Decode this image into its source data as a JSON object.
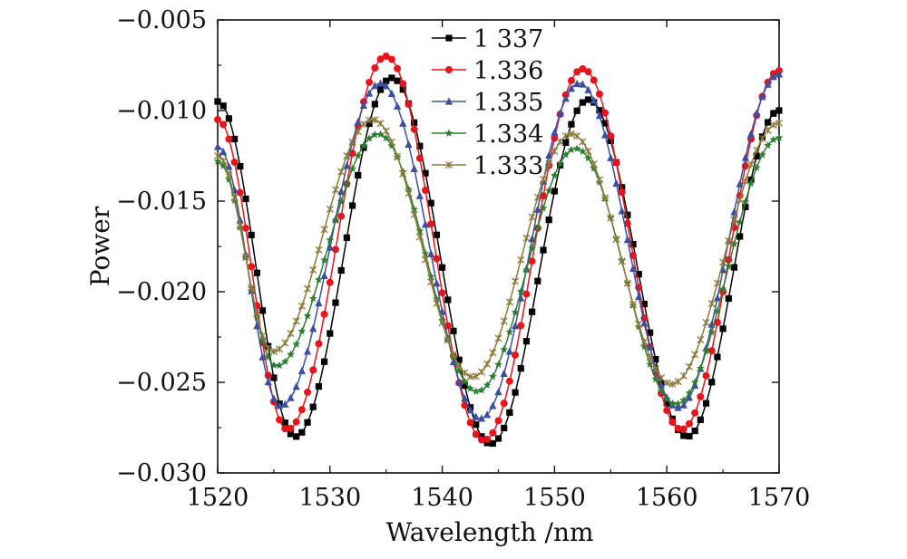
{
  "chart_data": {
    "type": "line",
    "title": "",
    "xlabel": "Wavelength /nm",
    "ylabel": "Power",
    "xlim": [
      1520,
      1570
    ],
    "ylim": [
      -0.03,
      -0.005
    ],
    "xticks": [
      1520,
      1530,
      1540,
      1550,
      1560,
      1570
    ],
    "xtick_labels": [
      "1520",
      "1530",
      "1540",
      "1550",
      "1560",
      "1570"
    ],
    "yticks": [
      -0.03,
      -0.025,
      -0.02,
      -0.015,
      -0.01,
      -0.005
    ],
    "ytick_labels": [
      "−0.030",
      "−0.025",
      "−0.020",
      "−0.015",
      "−0.010",
      "−0.005"
    ],
    "grid": false,
    "legend_position": "top-center",
    "x_step": 0.5,
    "series": [
      {
        "name": "1 337",
        "color": "#000000",
        "marker": "square",
        "points": [
          [
            1520,
            -0.0095
          ],
          [
            1526.9,
            -0.028
          ],
          [
            1535.5,
            -0.0082
          ],
          [
            1544.3,
            -0.0284
          ],
          [
            1553.0,
            -0.0094
          ],
          [
            1561.8,
            -0.028
          ],
          [
            1570,
            -0.01
          ]
        ]
      },
      {
        "name": "1.336",
        "color": "#e8141c",
        "marker": "circle",
        "points": [
          [
            1520,
            -0.0105
          ],
          [
            1526.2,
            -0.0276
          ],
          [
            1535.0,
            -0.007
          ],
          [
            1543.7,
            -0.0282
          ],
          [
            1552.5,
            -0.0077
          ],
          [
            1561.3,
            -0.0276
          ],
          [
            1570,
            -0.0078
          ]
        ]
      },
      {
        "name": "1.335",
        "color": "#3c4ea0",
        "marker": "triangle",
        "points": [
          [
            1520,
            -0.012
          ],
          [
            1525.6,
            -0.0263
          ],
          [
            1534.5,
            -0.0085
          ],
          [
            1543.4,
            -0.027
          ],
          [
            1552.2,
            -0.0085
          ],
          [
            1561.0,
            -0.0264
          ],
          [
            1570,
            -0.008
          ]
        ]
      },
      {
        "name": "1.334",
        "color": "#2e7d32",
        "marker": "star",
        "points": [
          [
            1520,
            -0.0128
          ],
          [
            1525.2,
            -0.0241
          ],
          [
            1534.3,
            -0.0113
          ],
          [
            1543.1,
            -0.0255
          ],
          [
            1551.9,
            -0.0121
          ],
          [
            1560.8,
            -0.0262
          ],
          [
            1570,
            -0.0115
          ]
        ]
      },
      {
        "name": "1.333",
        "color": "#8c7a3c",
        "marker": "x",
        "points": [
          [
            1520,
            -0.0125
          ],
          [
            1524.9,
            -0.0233
          ],
          [
            1533.8,
            -0.0105
          ],
          [
            1542.7,
            -0.0247
          ],
          [
            1551.5,
            -0.0113
          ],
          [
            1560.4,
            -0.0251
          ],
          [
            1570,
            -0.0107
          ]
        ]
      }
    ]
  }
}
